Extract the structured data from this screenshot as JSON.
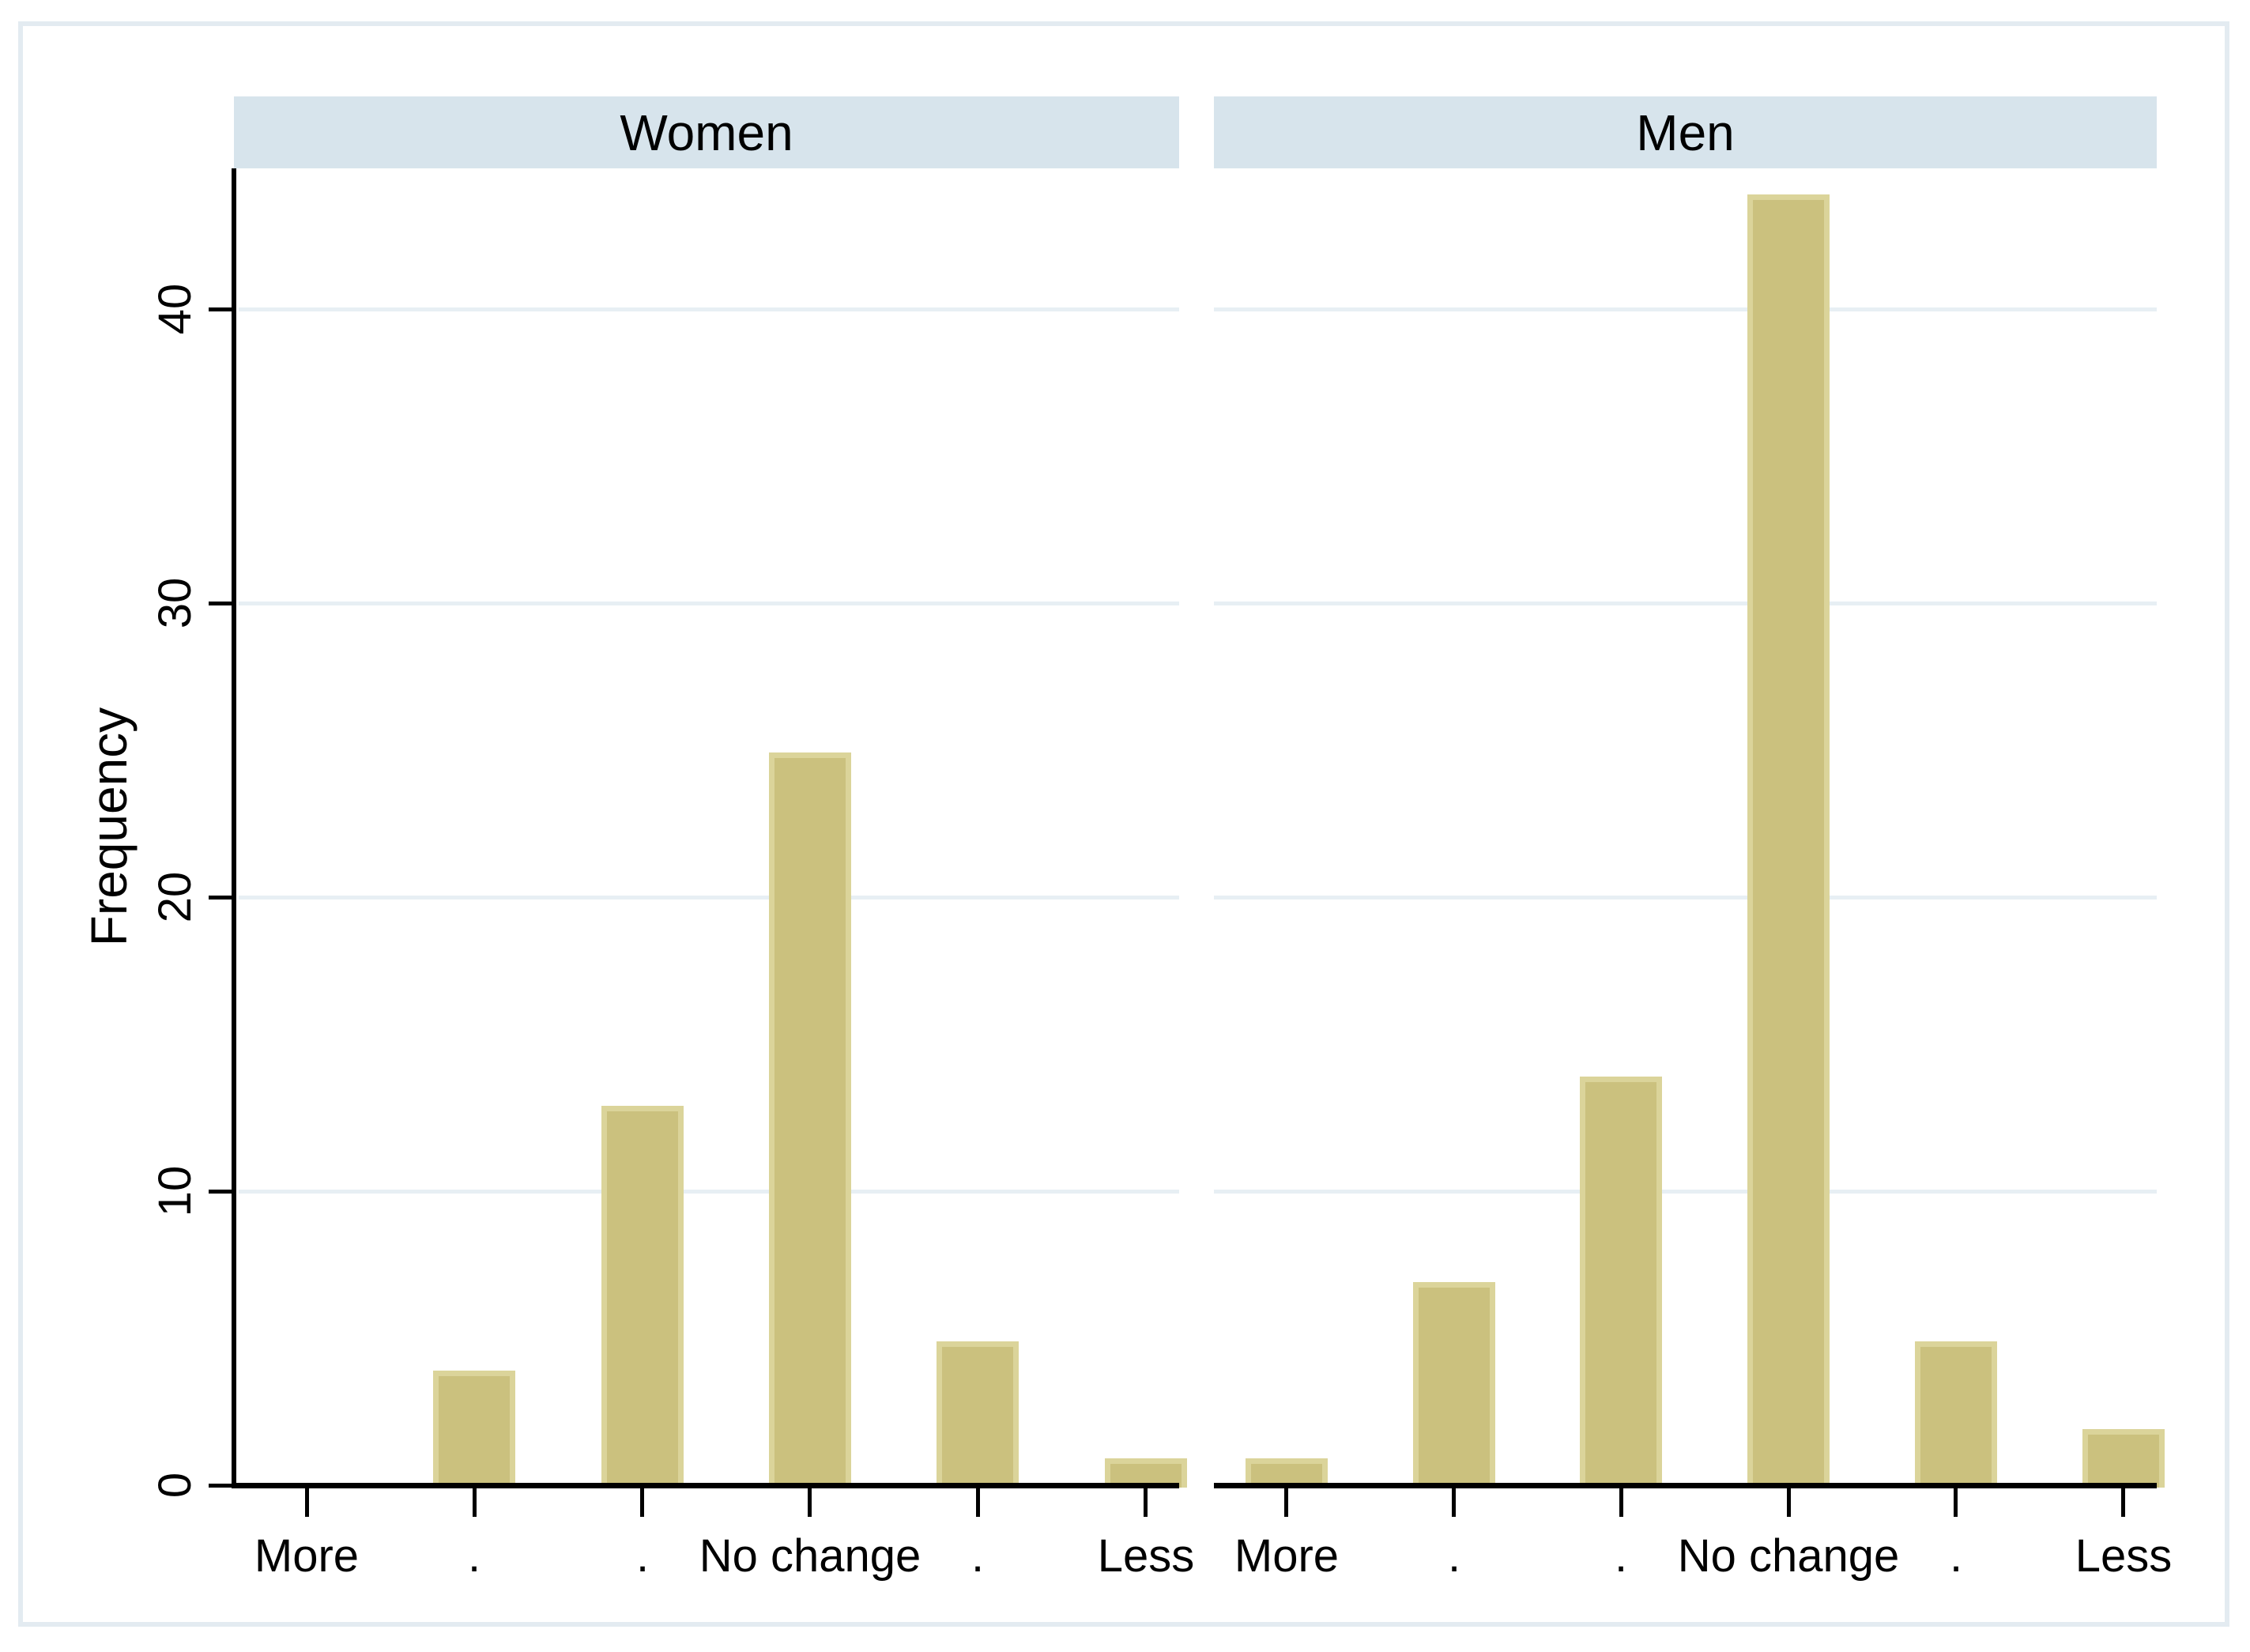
{
  "figure": {
    "ylabel": "Frequency",
    "ytick_labels": [
      "0",
      "10",
      "20",
      "30",
      "40"
    ]
  },
  "chart_data": {
    "type": "bar",
    "layout": "two side-by-side panels (Stata by() histogram), shared y axis, panel strip titles on top",
    "categories": [
      "More",
      ".",
      ".",
      "No change",
      ".",
      "Less"
    ],
    "series": [
      {
        "name": "Women",
        "values": [
          0,
          4,
          13,
          25,
          5,
          1
        ]
      },
      {
        "name": "Men",
        "values": [
          1,
          7,
          14,
          44,
          5,
          2
        ]
      }
    ],
    "title": "",
    "xlabel": "",
    "ylabel": "Frequency",
    "ylim": [
      0,
      44.8
    ],
    "yticks": [
      0,
      10,
      20,
      30,
      40
    ],
    "grid": true,
    "legend": "none"
  },
  "colors": {
    "bar_fill": "#cbc17e",
    "bar_border": "#dbd49a",
    "band_bg": "#d7e4ec",
    "gridline": "#e7eff4",
    "figure_border": "#e3ebf1",
    "axis": "#000000",
    "text": "#000000",
    "background": "#ffffff"
  }
}
